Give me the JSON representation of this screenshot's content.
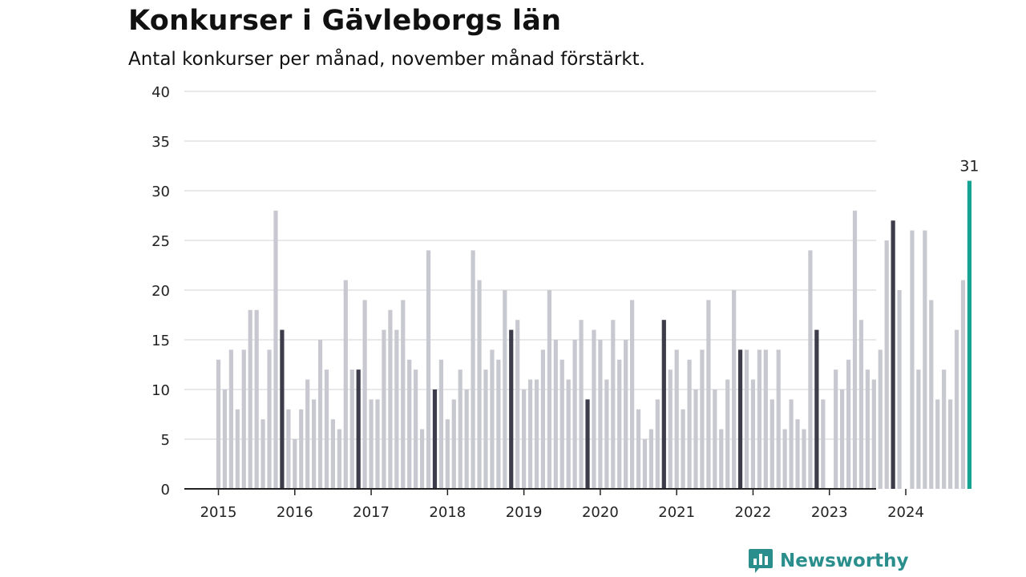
{
  "title": "Konkurser i Gävleborgs län",
  "subtitle": "Antal konkurser per månad, november månad förstärkt.",
  "brand": "Newsworthy",
  "colors": {
    "bar": "#c8c8d0",
    "highlight": "#3c3c4a",
    "latest": "#16a394",
    "brand": "#2a8f8c"
  },
  "chart_data": {
    "type": "bar",
    "ylim": [
      0,
      40
    ],
    "yticks": [
      0,
      5,
      10,
      15,
      20,
      25,
      30,
      35,
      40
    ],
    "xticks": [
      "2015",
      "2016",
      "2017",
      "2018",
      "2019",
      "2020",
      "2021",
      "2022",
      "2023",
      "2024"
    ],
    "grid": true,
    "start": "2015-01",
    "highlight_month": "November",
    "latest_label": "31",
    "values": [
      13,
      10,
      14,
      8,
      14,
      18,
      18,
      7,
      14,
      28,
      16,
      8,
      5,
      8,
      11,
      9,
      15,
      12,
      7,
      6,
      21,
      12,
      12,
      19,
      9,
      9,
      16,
      18,
      16,
      19,
      13,
      12,
      6,
      24,
      10,
      13,
      7,
      9,
      12,
      10,
      24,
      21,
      12,
      14,
      13,
      20,
      16,
      17,
      10,
      11,
      11,
      14,
      20,
      15,
      13,
      11,
      15,
      17,
      9,
      16,
      15,
      11,
      17,
      13,
      15,
      19,
      8,
      5,
      6,
      9,
      17,
      12,
      14,
      8,
      13,
      10,
      14,
      19,
      10,
      6,
      11,
      20,
      14,
      14,
      11,
      14,
      14,
      9,
      14,
      6,
      9,
      7,
      6,
      24,
      16,
      9,
      0,
      12,
      10,
      13,
      28,
      17,
      12,
      11,
      14,
      25,
      27,
      20,
      0,
      26,
      12,
      26,
      19,
      9,
      12,
      9,
      16,
      21,
      31
    ]
  }
}
